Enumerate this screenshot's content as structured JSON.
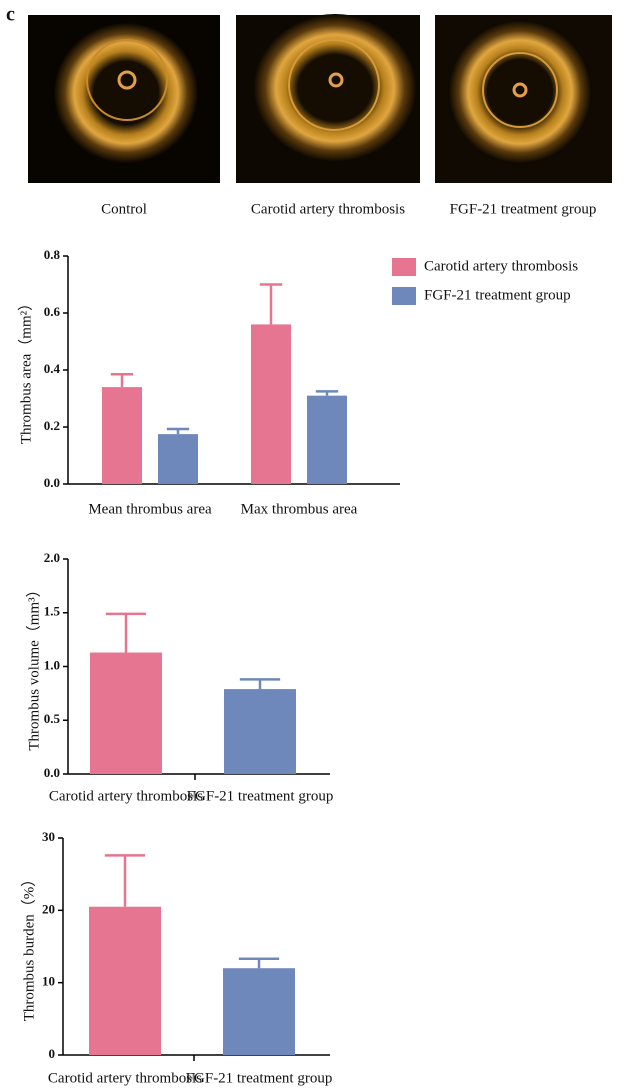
{
  "panel_label": "c",
  "images": [
    {
      "caption": "Control"
    },
    {
      "caption": "Carotid artery thrombosis"
    },
    {
      "caption": "FGF-21 treatment group"
    }
  ],
  "chart_data": [
    {
      "type": "bar",
      "ylabel": "Thrombus area（mm²）",
      "categories": [
        "Mean thrombus area",
        "Max thrombus area"
      ],
      "series": [
        {
          "name": "Carotid artery thrombosis",
          "color": "#e57590",
          "values": [
            0.34,
            0.56
          ],
          "errors": [
            0.045,
            0.14
          ]
        },
        {
          "name": "FGF-21 treatment group",
          "color": "#6f88bb",
          "values": [
            0.175,
            0.31
          ],
          "errors": [
            0.018,
            0.015
          ]
        }
      ],
      "ylim": [
        0,
        0.8
      ],
      "yticks": [
        {
          "value": 0,
          "label": "0.0"
        },
        0.2,
        0.4,
        0.6,
        0.8
      ],
      "legend": "top-right"
    },
    {
      "type": "bar",
      "ylabel": "Thrombus volume（mm³）",
      "categories": [
        "Carotid artery thrombosis",
        "FGF-21 treatment group"
      ],
      "values": [
        1.13,
        0.79
      ],
      "errors": [
        0.36,
        0.09
      ],
      "colors": [
        "#e57590",
        "#6f88bb"
      ],
      "ylim": [
        0,
        2
      ],
      "yticks": [
        {
          "value": 0,
          "label": "0.0"
        },
        0.5,
        {
          "value": 1,
          "label": "1.0"
        },
        1.5,
        {
          "value": 2,
          "label": "2.0"
        }
      ]
    },
    {
      "type": "bar",
      "ylabel": "Thrombus burden（%）",
      "categories": [
        "Carotid artery thrombosis",
        "FGF-21 treatment group"
      ],
      "values": [
        20.5,
        12
      ],
      "errors": [
        7.1,
        1.3
      ],
      "colors": [
        "#e57590",
        "#6f88bb"
      ],
      "ylim": [
        0,
        30
      ],
      "yticks": [
        0,
        10,
        20,
        30
      ]
    }
  ]
}
